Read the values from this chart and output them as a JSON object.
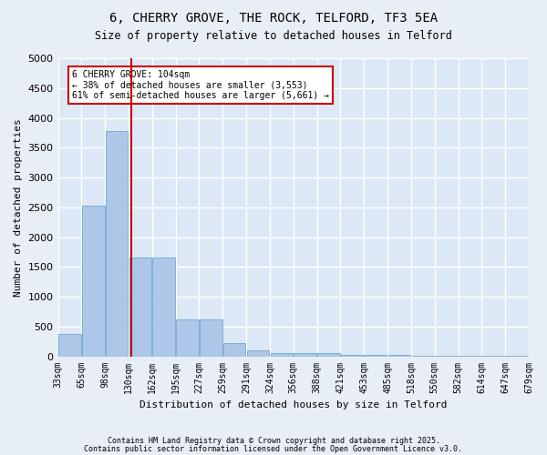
{
  "title1": "6, CHERRY GROVE, THE ROCK, TELFORD, TF3 5EA",
  "title2": "Size of property relative to detached houses in Telford",
  "xlabel": "Distribution of detached houses by size in Telford",
  "ylabel": "Number of detached properties",
  "bin_labels": [
    "33sqm",
    "65sqm",
    "98sqm",
    "130sqm",
    "162sqm",
    "195sqm",
    "227sqm",
    "259sqm",
    "291sqm",
    "324sqm",
    "356sqm",
    "388sqm",
    "421sqm",
    "453sqm",
    "485sqm",
    "518sqm",
    "550sqm",
    "582sqm",
    "614sqm",
    "647sqm",
    "679sqm"
  ],
  "values": [
    375,
    2525,
    3775,
    1650,
    1650,
    625,
    625,
    225,
    100,
    50,
    50,
    50,
    20,
    20,
    20,
    10,
    10,
    10,
    10,
    10
  ],
  "bar_color": "#aec6e8",
  "bar_edge_color": "#5a9fd4",
  "vline_x": 2.62,
  "vline_color": "#cc0000",
  "annotation_text": "6 CHERRY GROVE: 104sqm\n← 38% of detached houses are smaller (3,553)\n61% of semi-detached houses are larger (5,661) →",
  "annotation_box_color": "#cc0000",
  "ylim": [
    0,
    5000
  ],
  "yticks": [
    0,
    500,
    1000,
    1500,
    2000,
    2500,
    3000,
    3500,
    4000,
    4500,
    5000
  ],
  "bg_color": "#dce8f5",
  "grid_color": "#ffffff",
  "footer1": "Contains HM Land Registry data © Crown copyright and database right 2025.",
  "footer2": "Contains public sector information licensed under the Open Government Licence v3.0."
}
